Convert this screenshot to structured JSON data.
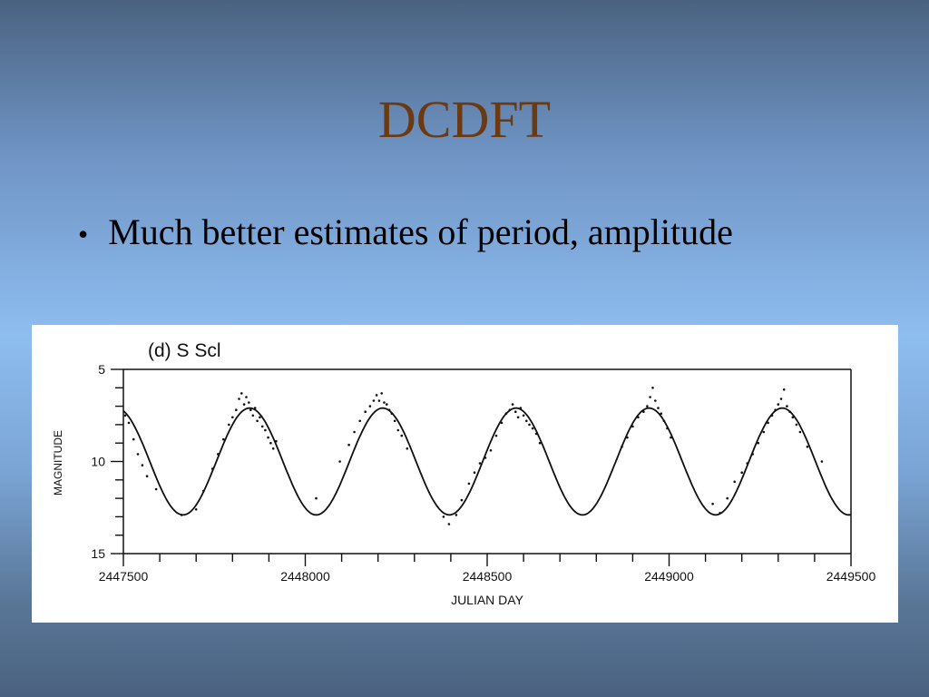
{
  "slide": {
    "title": "DCDFT",
    "bullet_marker": "•",
    "bullet_text": "Much better estimates of period, amplitude"
  },
  "colors": {
    "title": "#6b3a10",
    "background_mid": "#8ebdf0",
    "ink": "#111111"
  },
  "chart_data": {
    "type": "scatter",
    "title": "(d)  S  Scl",
    "xlabel": "JULIAN DAY",
    "ylabel": "MAGNITUDE",
    "xlim": [
      2447500,
      2449500
    ],
    "ylim": [
      15,
      5
    ],
    "y_inverted": true,
    "x_ticks": [
      2447500,
      2448000,
      2448500,
      2449000,
      2449500
    ],
    "x_tick_labels": [
      "2447500",
      "2448000",
      "2448500",
      "2449000",
      "2449500"
    ],
    "y_ticks": [
      5,
      10,
      15
    ],
    "y_tick_labels": [
      "5",
      "10",
      "15"
    ],
    "grid": false,
    "legend": "none",
    "series": [
      {
        "kind": "fitted_sinusoid",
        "mean": 10.0,
        "amplitude": 2.9,
        "period": 366,
        "maximum_at": 2447847
      },
      {
        "kind": "observations",
        "x": [
          2447505,
          2447515,
          2447528,
          2447540,
          2447552,
          2447565,
          2447590,
          2447660,
          2447700,
          2447720,
          2447745,
          2447760,
          2447775,
          2447790,
          2447800,
          2447810,
          2447818,
          2447825,
          2447832,
          2447838,
          2447845,
          2447850,
          2447856,
          2447862,
          2447868,
          2447875,
          2447882,
          2447890,
          2447898,
          2447905,
          2447912,
          2447920,
          2448030,
          2448095,
          2448120,
          2448135,
          2448150,
          2448165,
          2448178,
          2448188,
          2448196,
          2448203,
          2448210,
          2448217,
          2448224,
          2448231,
          2448238,
          2448246,
          2448255,
          2448265,
          2448280,
          2448380,
          2448395,
          2448415,
          2448430,
          2448450,
          2448465,
          2448480,
          2448495,
          2448510,
          2448525,
          2448540,
          2448552,
          2448562,
          2448570,
          2448578,
          2448585,
          2448592,
          2448600,
          2448608,
          2448616,
          2448625,
          2448635,
          2448645,
          2448870,
          2448885,
          2448900,
          2448915,
          2448930,
          2448940,
          2448948,
          2448955,
          2448962,
          2448970,
          2448978,
          2448986,
          2448995,
          2449005,
          2449120,
          2449140,
          2449160,
          2449180,
          2449200,
          2449215,
          2449230,
          2449245,
          2449260,
          2449272,
          2449283,
          2449292,
          2449300,
          2449308,
          2449316,
          2449324,
          2449332,
          2449340,
          2449350,
          2449360,
          2449380,
          2449420
        ],
        "y": [
          7.5,
          7.9,
          8.8,
          9.6,
          10.2,
          10.8,
          11.5,
          12.9,
          12.6,
          11.6,
          10.4,
          9.6,
          8.8,
          8.0,
          7.6,
          7.2,
          6.6,
          6.3,
          6.9,
          6.5,
          6.8,
          7.2,
          7.5,
          7.1,
          7.8,
          7.6,
          8.1,
          8.3,
          8.7,
          9.0,
          9.3,
          8.9,
          12.0,
          10.0,
          9.1,
          8.4,
          7.8,
          7.3,
          7.0,
          6.7,
          6.4,
          6.7,
          6.3,
          6.8,
          6.9,
          7.2,
          7.4,
          7.8,
          8.3,
          8.6,
          9.3,
          13.0,
          13.4,
          12.9,
          12.1,
          11.2,
          10.6,
          10.1,
          9.8,
          9.4,
          8.6,
          7.9,
          7.4,
          7.2,
          6.9,
          7.3,
          7.6,
          7.1,
          7.5,
          7.8,
          8.0,
          8.2,
          8.5,
          9.0,
          9.2,
          8.7,
          8.1,
          7.6,
          7.3,
          7.0,
          6.5,
          6.0,
          6.7,
          7.1,
          7.4,
          7.8,
          8.2,
          8.7,
          12.3,
          12.8,
          12.0,
          11.1,
          10.6,
          10.1,
          9.6,
          9.0,
          8.4,
          7.9,
          7.5,
          7.2,
          6.9,
          6.6,
          6.1,
          7.0,
          7.3,
          7.6,
          8.0,
          8.4,
          9.2,
          10.0
        ]
      }
    ]
  }
}
